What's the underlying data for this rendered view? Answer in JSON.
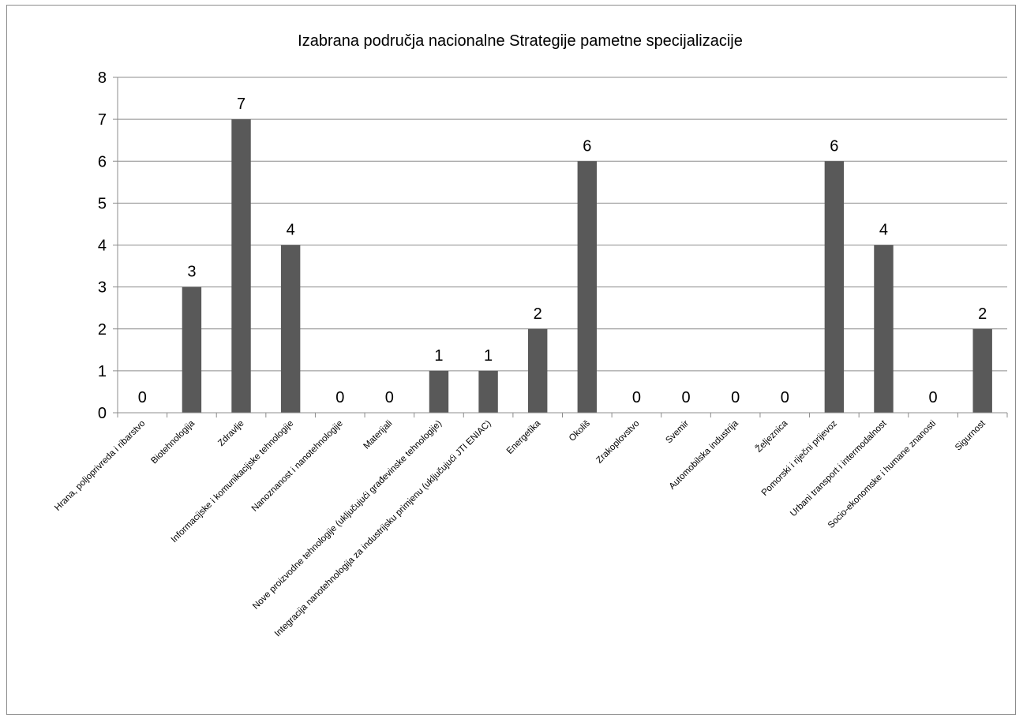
{
  "chart_data": {
    "type": "bar",
    "title": "Izabrana područja nacionalne Strategije pametne specijalizacije",
    "xlabel": "",
    "ylabel": "",
    "ylim": [
      0,
      8
    ],
    "yticks": [
      "0",
      "1",
      "2",
      "3",
      "4",
      "5",
      "6",
      "7",
      "8"
    ],
    "grid": true,
    "legend": "none",
    "bar_color": "#595959",
    "categories": [
      "Hrana, poljoprivreda i ribarstvo",
      "Biotehnologija",
      "Zdravlje",
      "Informacijske i komunikacijske tehnologije",
      "Nanoznanost i nanotehnologije",
      "Materijali",
      "Nove proizvodne tehnologije (uključujući građevinske tehnologije)",
      "Integracija nanotehnologija za industrijsku primjenu (uključujući JTI ENIAC)",
      "Energetika",
      "Okoliš",
      "Zrakoplovstvo",
      "Svemir",
      "Automobilska industrija",
      "Željeznica",
      "Pomorski i riječni prijevoz",
      "Urbani transport i intermodalnost",
      "Socio-ekonomske i humane znanosti",
      "Sigurnost"
    ],
    "values": [
      0,
      3,
      7,
      4,
      0,
      0,
      1,
      1,
      2,
      6,
      0,
      0,
      0,
      0,
      6,
      4,
      0,
      2
    ],
    "data_labels": [
      "0",
      "3",
      "7",
      "4",
      "0",
      "0",
      "1",
      "1",
      "2",
      "6",
      "0",
      "0",
      "0",
      "0",
      "6",
      "4",
      "0",
      "2"
    ]
  }
}
